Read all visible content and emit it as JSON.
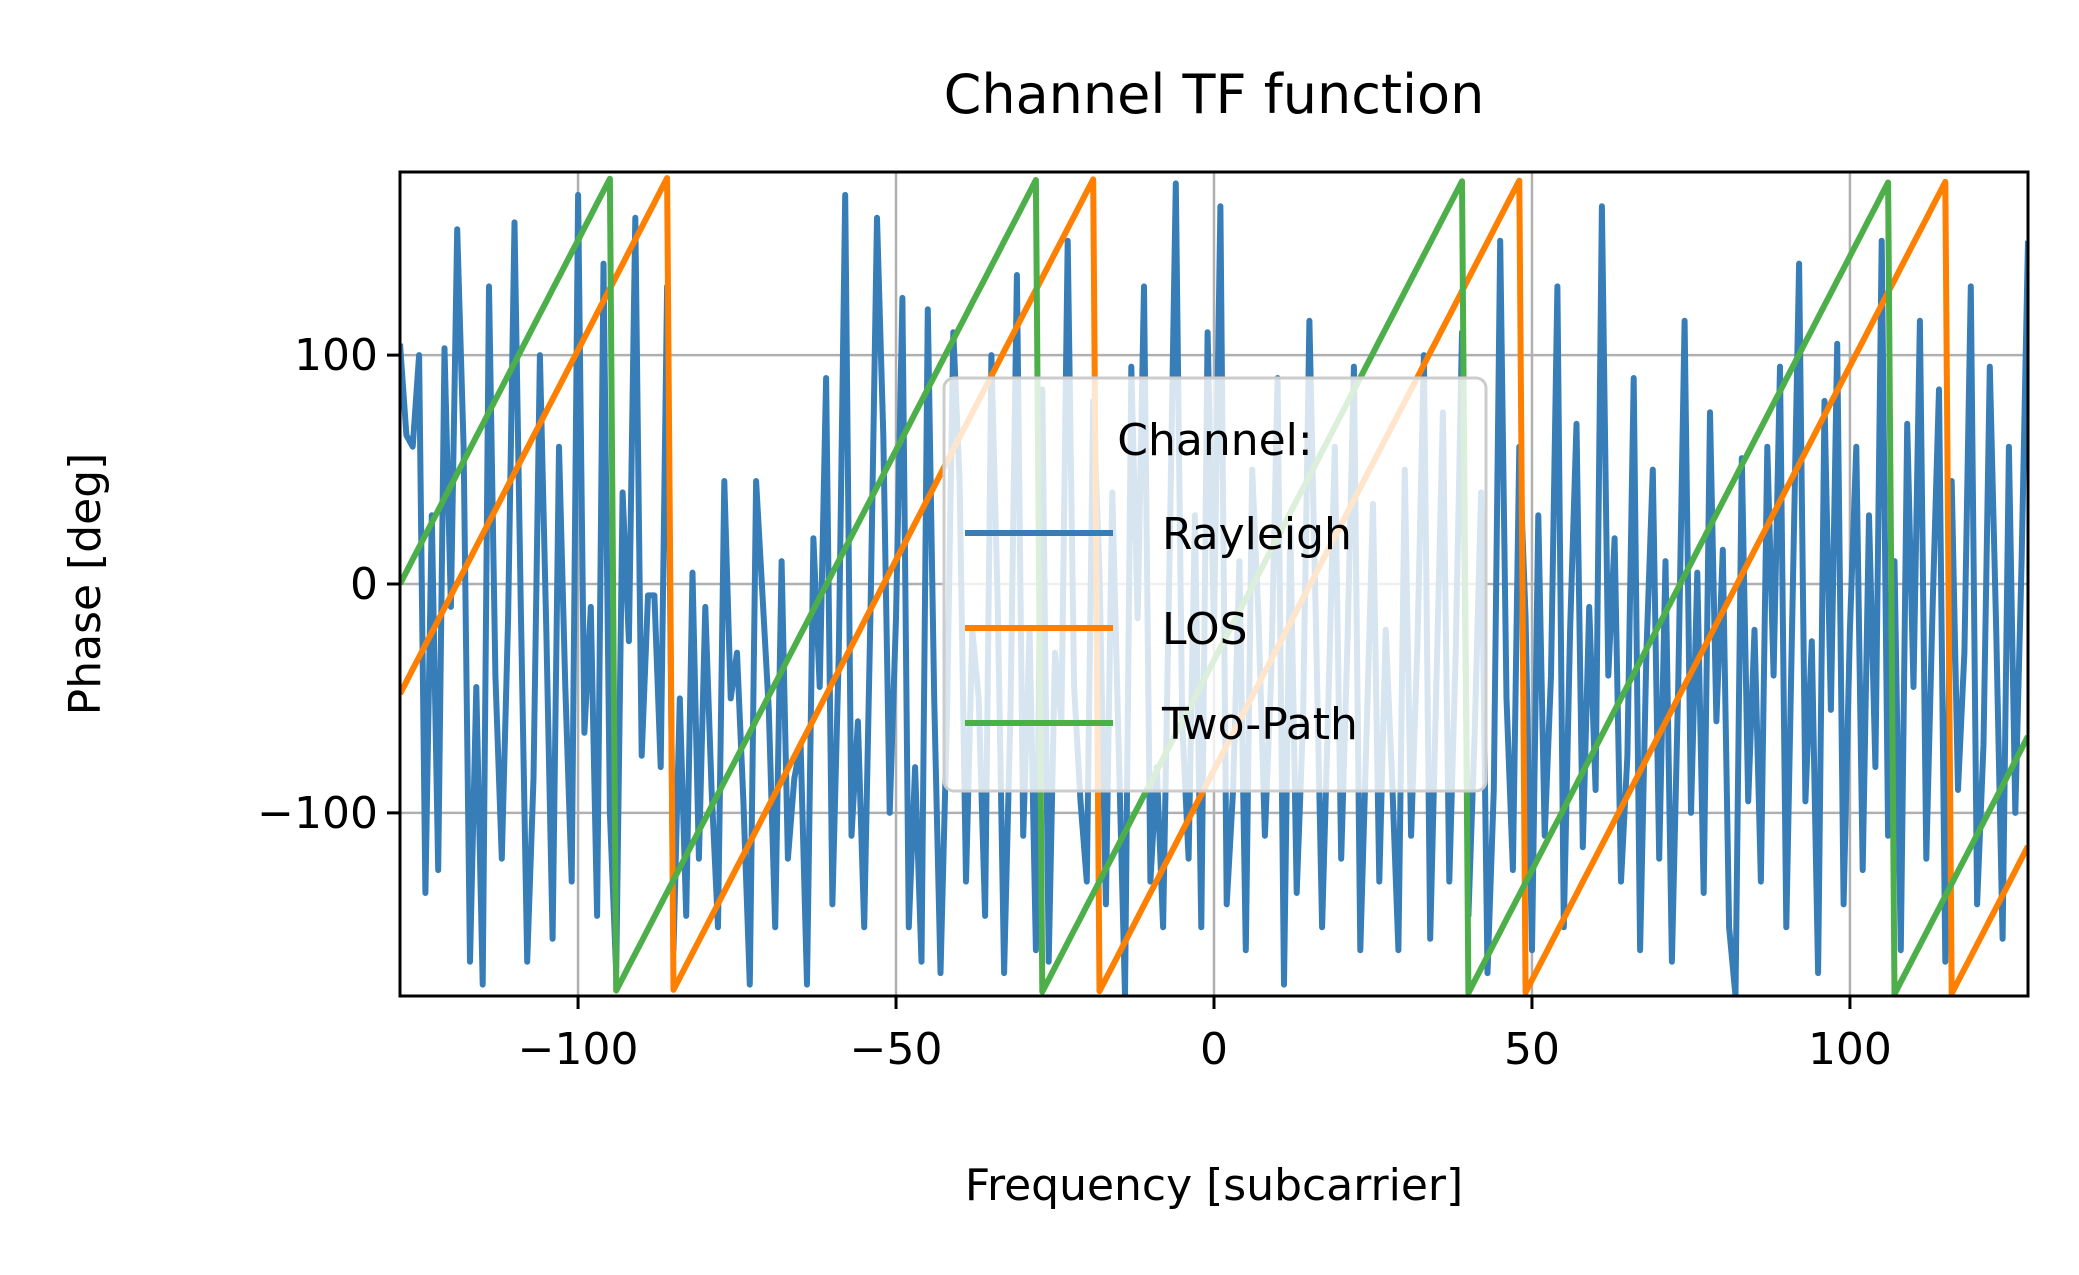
{
  "chart_data": {
    "type": "line",
    "title": "Channel TF function",
    "xlabel": "Frequency [subcarrier]",
    "ylabel": "Phase [deg]",
    "xlim": [
      -128,
      128
    ],
    "ylim": [
      -180,
      180
    ],
    "xticks": [
      -100,
      -50,
      0,
      50,
      100
    ],
    "xtick_labels": [
      "−100",
      "−50",
      "0",
      "50",
      "100"
    ],
    "yticks": [
      -100,
      0,
      100
    ],
    "ytick_labels": [
      "−100",
      "0",
      "100"
    ],
    "grid": true,
    "legend": {
      "title": "Channel:",
      "placement": "center"
    },
    "series": [
      {
        "name": "Rayleigh",
        "color": "#377eb8",
        "x_start": -128,
        "x_step": 1,
        "values": [
          105,
          65,
          60,
          100,
          -135,
          30,
          -125,
          103,
          -10,
          155,
          60,
          -165,
          -45,
          -175,
          130,
          -40,
          -120,
          -15,
          158,
          -10,
          -165,
          -85,
          100,
          -20,
          -155,
          60,
          -45,
          -130,
          170,
          -65,
          -10,
          -145,
          140,
          -100,
          -170,
          40,
          -25,
          160,
          -75,
          -5,
          -5,
          -80,
          130,
          -160,
          -50,
          -145,
          5,
          -120,
          -10,
          -90,
          -150,
          45,
          -50,
          -30,
          -95,
          -175,
          45,
          -5,
          -55,
          -150,
          10,
          -120,
          -85,
          -70,
          -175,
          20,
          -45,
          90,
          -140,
          -30,
          170,
          -110,
          -60,
          -150,
          -10,
          160,
          65,
          -100,
          -15,
          125,
          -150,
          -80,
          -165,
          120,
          -50,
          -170,
          -60,
          110,
          45,
          -130,
          -20,
          -50,
          -145,
          100,
          -10,
          -170,
          -55,
          135,
          -110,
          -20,
          -160,
          85,
          -165,
          -30,
          -60,
          150,
          -45,
          -95,
          -130,
          80,
          5,
          -140,
          40,
          -70,
          -180,
          95,
          -15,
          130,
          -130,
          -80,
          -150,
          10,
          175,
          -60,
          -120,
          30,
          -150,
          110,
          -20,
          165,
          -140,
          -90,
          10,
          -160,
          50,
          -15,
          -110,
          -40,
          90,
          -175,
          25,
          -135,
          -60,
          115,
          -15,
          -150,
          -50,
          60,
          -120,
          -25,
          95,
          -160,
          -65,
          35,
          -130,
          -20,
          -85,
          -160,
          50,
          -110,
          -25,
          100,
          -155,
          -40,
          75,
          -130,
          -30,
          110,
          -145,
          -65,
          40,
          -170,
          -90,
          150,
          -50,
          -125,
          60,
          -15,
          -160,
          30,
          -110,
          -40,
          130,
          -150,
          -20,
          70,
          -115,
          -10,
          -90,
          165,
          -40,
          20,
          -130,
          -75,
          90,
          -160,
          -30,
          50,
          -120,
          10,
          -165,
          -45,
          115,
          -100,
          5,
          -135,
          75,
          -60,
          15,
          -150,
          -180,
          55,
          -95,
          -20,
          -130,
          60,
          -40,
          95,
          -150,
          -5,
          140,
          -95,
          -25,
          -170,
          80,
          -55,
          105,
          -140,
          -20,
          60,
          -125,
          30,
          -80,
          150,
          -110,
          10,
          -160,
          70,
          -45,
          115,
          -120,
          -10,
          85,
          -165,
          45,
          -90,
          -30,
          130,
          -140,
          -70,
          95,
          -20,
          -155,
          60,
          -100,
          10,
          150
        ]
      },
      {
        "name": "LOS",
        "color": "#ff7f00",
        "x_start": -128,
        "x_step": 1,
        "start_deg": -48,
        "slope_deg_per_subcarrier": 5.365
      },
      {
        "name": "Two-Path",
        "color": "#4daf4a",
        "x_start": -128,
        "x_step": 1,
        "start_deg": 0,
        "slope_deg_per_subcarrier": 5.365
      }
    ]
  }
}
